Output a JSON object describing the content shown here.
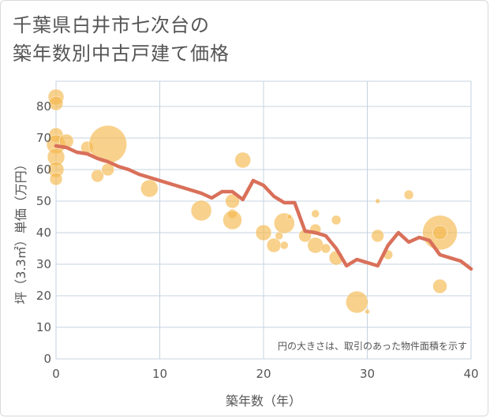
{
  "title_line1": "千葉県白井市七次台の",
  "title_line2": "築年数別中古戸建て価格",
  "colors": {
    "bubble": "#f5b94f",
    "line": "#d9705a",
    "grid": "#c5d3e0",
    "text": "#555555"
  },
  "chart_data": {
    "type": "scatter",
    "xlabel": "築年数（年）",
    "ylabel": "坪（3.3㎡）単価（万円）",
    "xlim": [
      0,
      40
    ],
    "ylim": [
      0,
      88
    ],
    "x_ticks": [
      0,
      10,
      20,
      30,
      40
    ],
    "y_ticks": [
      0,
      10,
      20,
      30,
      40,
      50,
      60,
      70,
      80
    ],
    "grid": true,
    "annotation": "円の大きさは、取引のあった物件面積を示す",
    "bubbles": [
      {
        "x": 0,
        "y": 83,
        "size": 10
      },
      {
        "x": 0,
        "y": 81,
        "size": 9
      },
      {
        "x": 0,
        "y": 71,
        "size": 9
      },
      {
        "x": 0,
        "y": 68,
        "size": 12
      },
      {
        "x": 0,
        "y": 64,
        "size": 11
      },
      {
        "x": 0,
        "y": 60,
        "size": 10
      },
      {
        "x": 0,
        "y": 57,
        "size": 8
      },
      {
        "x": 1,
        "y": 69,
        "size": 9
      },
      {
        "x": 3,
        "y": 67,
        "size": 8
      },
      {
        "x": 4,
        "y": 58,
        "size": 8
      },
      {
        "x": 5,
        "y": 68,
        "size": 24
      },
      {
        "x": 5,
        "y": 60,
        "size": 8
      },
      {
        "x": 9,
        "y": 54,
        "size": 11
      },
      {
        "x": 14,
        "y": 47,
        "size": 13
      },
      {
        "x": 17,
        "y": 50,
        "size": 9
      },
      {
        "x": 17,
        "y": 46,
        "size": 6
      },
      {
        "x": 17,
        "y": 44,
        "size": 12
      },
      {
        "x": 18,
        "y": 63,
        "size": 10
      },
      {
        "x": 20,
        "y": 40,
        "size": 10
      },
      {
        "x": 21,
        "y": 36,
        "size": 9
      },
      {
        "x": 21.5,
        "y": 39,
        "size": 5
      },
      {
        "x": 22,
        "y": 43,
        "size": 13
      },
      {
        "x": 22,
        "y": 36,
        "size": 5
      },
      {
        "x": 22.5,
        "y": 45,
        "size": 3
      },
      {
        "x": 24,
        "y": 39,
        "size": 8
      },
      {
        "x": 25,
        "y": 46,
        "size": 5
      },
      {
        "x": 25,
        "y": 41,
        "size": 7
      },
      {
        "x": 25,
        "y": 36,
        "size": 10
      },
      {
        "x": 26,
        "y": 35,
        "size": 6
      },
      {
        "x": 27,
        "y": 44,
        "size": 6
      },
      {
        "x": 27,
        "y": 32,
        "size": 9
      },
      {
        "x": 29,
        "y": 18,
        "size": 14
      },
      {
        "x": 30,
        "y": 15,
        "size": 3
      },
      {
        "x": 31,
        "y": 50,
        "size": 3
      },
      {
        "x": 31,
        "y": 39,
        "size": 8
      },
      {
        "x": 32,
        "y": 33,
        "size": 6
      },
      {
        "x": 34,
        "y": 52,
        "size": 6
      },
      {
        "x": 37,
        "y": 40,
        "size": 22
      },
      {
        "x": 37,
        "y": 40,
        "size": 9
      },
      {
        "x": 37,
        "y": 23,
        "size": 9
      }
    ],
    "series": [
      {
        "type": "line",
        "x": [
          0,
          1,
          2,
          3,
          4,
          5,
          6,
          7,
          8,
          9,
          10,
          11,
          12,
          13,
          14,
          15,
          16,
          17,
          18,
          19,
          20,
          21,
          22,
          23,
          24,
          25,
          26,
          27,
          28,
          29,
          30,
          31,
          32,
          33,
          34,
          35,
          36,
          37,
          38,
          39,
          40
        ],
        "y": [
          67.5,
          67,
          65.5,
          65,
          63.5,
          62.5,
          61,
          60,
          58.5,
          57.5,
          56.5,
          55.5,
          54.5,
          53.5,
          52.5,
          51,
          53,
          53,
          50.5,
          56.5,
          55,
          51.5,
          49.5,
          49.5,
          40.5,
          40,
          39,
          35,
          29.5,
          31.5,
          30.5,
          29.5,
          36,
          40,
          37,
          38.5,
          37.5,
          33,
          32,
          31,
          28.5
        ]
      }
    ]
  }
}
